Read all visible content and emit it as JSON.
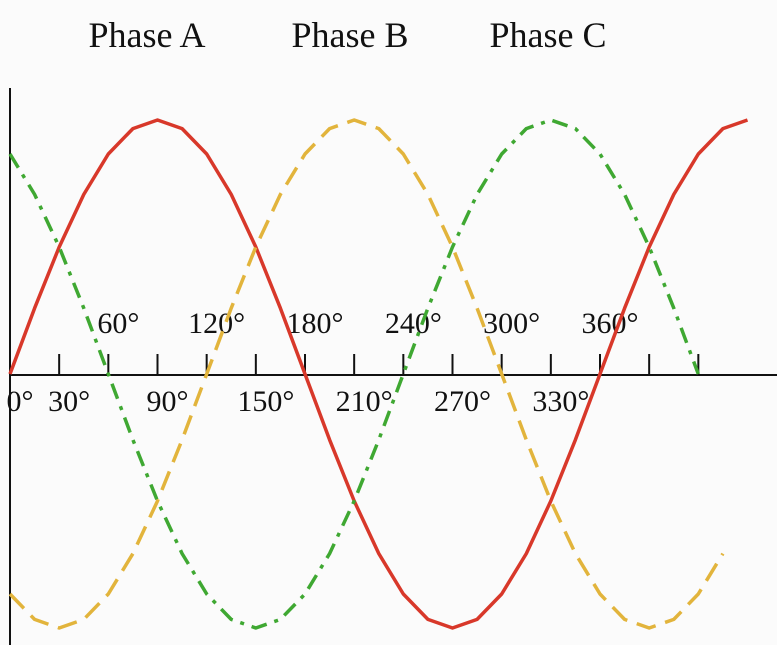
{
  "chart_data": {
    "type": "line",
    "x": [
      0,
      15,
      30,
      45,
      60,
      75,
      90,
      105,
      120,
      135,
      150,
      165,
      180,
      195,
      210,
      225,
      240,
      255,
      270,
      285,
      300,
      315,
      330,
      345,
      360,
      375,
      390,
      405,
      420,
      435,
      450
    ],
    "series": [
      {
        "name": "Phase A",
        "color": "#d8382a",
        "dash": "solid",
        "values": [
          0,
          0.259,
          0.5,
          0.707,
          0.866,
          0.966,
          1,
          0.966,
          0.866,
          0.707,
          0.5,
          0.259,
          0,
          -0.259,
          -0.5,
          -0.707,
          -0.866,
          -0.966,
          -1,
          -0.966,
          -0.866,
          -0.707,
          -0.5,
          -0.259,
          0,
          0.259,
          0.5,
          0.707,
          0.866,
          0.966,
          1
        ]
      },
      {
        "name": "Phase B",
        "color": "#e2b43c",
        "dash": "dashed",
        "values": [
          -0.866,
          -0.966,
          -1,
          -0.966,
          -0.866,
          -0.707,
          -0.5,
          -0.259,
          0,
          0.259,
          0.5,
          0.707,
          0.866,
          0.966,
          1,
          0.966,
          0.866,
          0.707,
          0.5,
          0.259,
          0,
          -0.259,
          -0.5,
          -0.707,
          -0.866,
          -0.966,
          -1,
          -0.966,
          -0.866,
          -0.707,
          null
        ]
      },
      {
        "name": "Phase C",
        "color": "#3fa832",
        "dash": "dashdot",
        "values": [
          0.866,
          0.707,
          0.5,
          0.259,
          0,
          -0.259,
          -0.5,
          -0.707,
          -0.866,
          -0.966,
          -1,
          -0.966,
          -0.866,
          -0.707,
          -0.5,
          -0.259,
          0,
          0.259,
          0.5,
          0.707,
          0.866,
          0.966,
          1,
          0.966,
          0.866,
          0.707,
          0.5,
          0.259,
          0,
          null,
          null
        ]
      }
    ],
    "xlim": [
      0,
      468
    ],
    "ylim": [
      -1,
      1
    ],
    "xticks": [
      {
        "value": 0,
        "label": "0°"
      },
      {
        "value": 30,
        "label": "30°"
      },
      {
        "value": 60,
        "label": "60°"
      },
      {
        "value": 90,
        "label": "90°"
      },
      {
        "value": 120,
        "label": "120°"
      },
      {
        "value": 150,
        "label": "150°"
      },
      {
        "value": 180,
        "label": "180°"
      },
      {
        "value": 210,
        "label": "210°"
      },
      {
        "value": 240,
        "label": "240°"
      },
      {
        "value": 270,
        "label": "270°"
      },
      {
        "value": 300,
        "label": "300°"
      },
      {
        "value": 330,
        "label": "330°"
      },
      {
        "value": 360,
        "label": "360°"
      },
      {
        "value": 390,
        "label": null
      },
      {
        "value": 420,
        "label": null
      }
    ]
  }
}
